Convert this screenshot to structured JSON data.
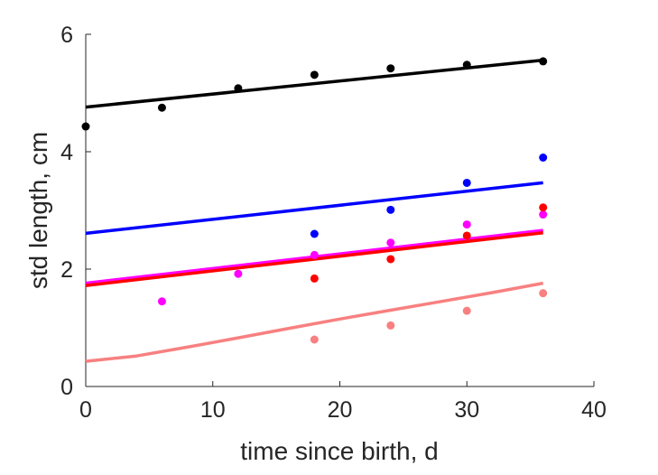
{
  "chart_data": {
    "type": "scatter",
    "title": "",
    "xlabel": "time since birth, d",
    "ylabel": "std length, cm",
    "xlim": [
      0,
      40
    ],
    "ylim": [
      0,
      6
    ],
    "xticks": [
      0,
      10,
      20,
      30,
      40
    ],
    "yticks": [
      0,
      2,
      4,
      6
    ],
    "grid": false,
    "legend": "none",
    "series": [
      {
        "color": "#000000",
        "points": [
          [
            0,
            4.43
          ],
          [
            6,
            4.75
          ],
          [
            12,
            5.08
          ],
          [
            18,
            5.31
          ],
          [
            24,
            5.42
          ],
          [
            30,
            5.48
          ],
          [
            36,
            5.54
          ]
        ],
        "fit": [
          [
            0,
            4.76
          ],
          [
            36,
            5.56
          ]
        ]
      },
      {
        "color": "#0000ff",
        "points": [
          [
            18,
            2.6
          ],
          [
            24,
            3.01
          ],
          [
            30,
            3.47
          ],
          [
            36,
            3.9
          ]
        ],
        "fit": [
          [
            0,
            2.61
          ],
          [
            36,
            3.47
          ]
        ]
      },
      {
        "color": "#ff00ff",
        "points": [
          [
            6,
            1.45
          ],
          [
            12,
            1.92
          ],
          [
            18,
            2.24
          ],
          [
            24,
            2.45
          ],
          [
            30,
            2.76
          ],
          [
            36,
            2.93
          ]
        ],
        "fit": [
          [
            0,
            1.76
          ],
          [
            36,
            2.66
          ]
        ]
      },
      {
        "color": "#ff0000",
        "points": [
          [
            18,
            1.84
          ],
          [
            24,
            2.17
          ],
          [
            30,
            2.57
          ],
          [
            36,
            3.05
          ]
        ],
        "fit": [
          [
            0,
            1.72
          ],
          [
            36,
            2.62
          ]
        ]
      },
      {
        "color": "#f88080",
        "points": [
          [
            18,
            0.8
          ],
          [
            24,
            1.04
          ],
          [
            30,
            1.29
          ],
          [
            36,
            1.59
          ]
        ],
        "fit": [
          [
            0,
            0.43
          ],
          [
            4,
            0.52
          ],
          [
            8,
            0.67
          ],
          [
            12,
            0.83
          ],
          [
            16,
            0.99
          ],
          [
            20,
            1.15
          ],
          [
            24,
            1.3
          ],
          [
            28,
            1.45
          ],
          [
            32,
            1.6
          ],
          [
            36,
            1.76
          ]
        ]
      }
    ]
  }
}
